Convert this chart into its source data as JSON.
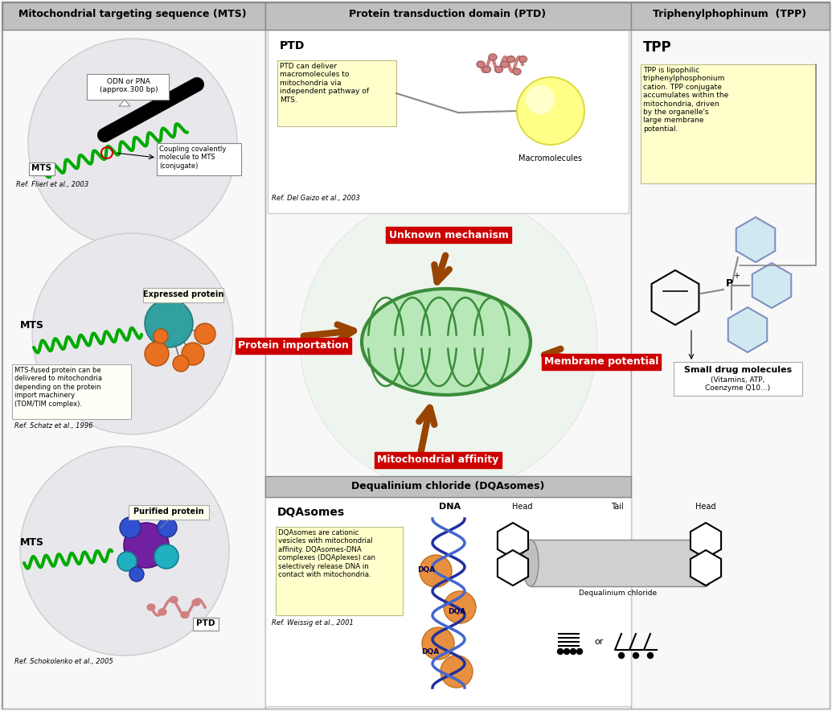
{
  "bg_color": "#f5f5f5",
  "section_headers": {
    "mts": "Mitochondrial targeting sequence (MTS)",
    "ptd": "Protein transduction domain (PTD)",
    "tpp": "Triphenylphophinum  (TPP)",
    "dqa": "Dequalinium chloride (DQAsomes)"
  },
  "arrow_color": "#994400",
  "red_label_bg": "#cc0000",
  "red_label_fg": "#ffffff",
  "labels": {
    "unknown": "Unknown mechanism",
    "protein_imp": "Protein importation",
    "membrane": "Membrane potential",
    "mito_affinity": "Mitochondrial affinity"
  },
  "mts_texts": {
    "odn": "ODN or PNA\n(approx.300 bp)",
    "mts1": "MTS",
    "coupling": "Coupling covalently\nmolecule to MTS\n(conjugate)",
    "ref1": "Ref. Flierl et al., 2003",
    "expressed": "Expressed protein",
    "mts2": "MTS",
    "mts_desc": "MTS-fused protein can be\ndelivered to mitochondria\ndepending on the protein\nimport machinery\n(TOM/TIM complex).",
    "ref2": "Ref. Schatz et al., 1996",
    "purified": "Purified protein",
    "mts3": "MTS",
    "ptd_label": "PTD",
    "ref3": "Ref. Schokolenko et al., 2005"
  },
  "ptd_texts": {
    "ptd": "PTD",
    "ptd_desc": "PTD can deliver\nmacromolecules to\nmitochondria via\nindependent pathway of\nMTS.",
    "ref": "Ref. Del Gaizo et al., 2003",
    "macro": "Macromolecules"
  },
  "tpp_texts": {
    "tpp": "TPP",
    "tpp_desc": "TPP is lipophilic\ntriphenylphosphonium\ncation. TPP conjugate\naccumulates within the\nmitochondria, driven\nby the organelle's\nlarge membrane\npotential.",
    "small_drug": "Small drug molecules",
    "vitamins": "(Vitamins, ATP,\nCoenzyme Q10...)"
  },
  "dqa_texts": {
    "dqa": "DQAsomes",
    "dqa_desc": "DQAsomes are cationic\nvesicles with mitochondrial\naffinity. DQAsomes-DNA\ncomplexes (DQAplexes) can\nselectively release DNA in\ncontact with mitochondria.",
    "ref": "Ref. Weissig et al., 2001",
    "dna": "DNA",
    "head1": "Head",
    "tail": "Tail",
    "head2": "Head",
    "deq": "Dequalinium chloride"
  },
  "colors": {
    "green_mito_outer": "#3a8c3a",
    "green_mito_fill": "#b8e8b8",
    "teal_ball": "#30a0a0",
    "orange_ball": "#e87020",
    "purple_ball": "#7020a0",
    "blue_ball": "#3050d0",
    "cyan_ball": "#20b0c0",
    "pink_chain": "#d08080",
    "green_chain": "#00aa00",
    "box_yellow": "#ffffcc",
    "header_gray": "#c0c0c0",
    "panel_white": "#ffffff",
    "circle_bg": "#e8e8e8",
    "dqa_orange": "#e89040",
    "dqa_blue": "#2030a0",
    "ring_blue": "#8090c0"
  }
}
